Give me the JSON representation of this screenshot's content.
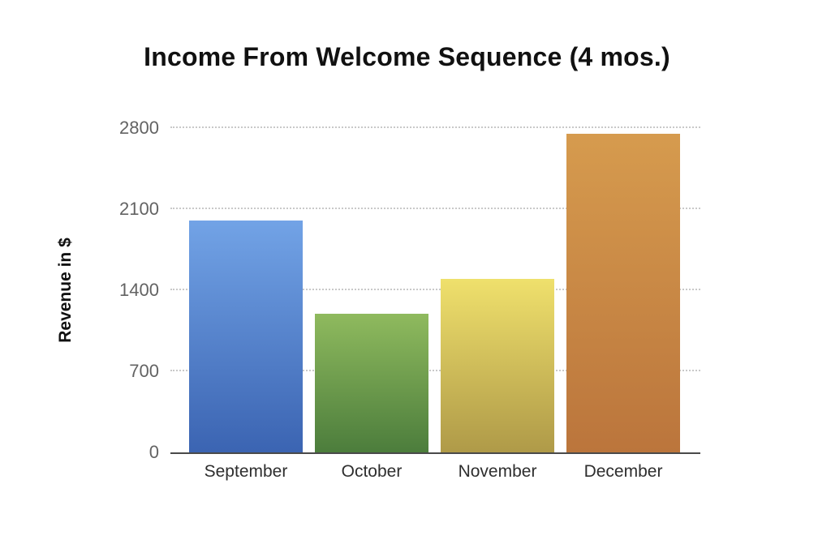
{
  "page": {
    "background_color": "#ffffff"
  },
  "chart_data": {
    "type": "bar",
    "title": "Income From Welcome Sequence (4 mos.)",
    "ylabel": "Revenue in $",
    "xlabel": "",
    "categories": [
      "September",
      "October",
      "November",
      "December"
    ],
    "values": [
      2000,
      1200,
      1500,
      2750
    ],
    "y_ticks": [
      0,
      700,
      1400,
      2100,
      2800
    ],
    "ylim": [
      0,
      2800
    ],
    "grid": "horizontal dotted, behind bars",
    "legend_position": "none",
    "bar_gradients": [
      {
        "name": "blue",
        "top": "#72A3E6",
        "bottom": "#3B64B2"
      },
      {
        "name": "green",
        "top": "#8FBA5E",
        "bottom": "#4C7D3C"
      },
      {
        "name": "yellow",
        "top": "#EFE06C",
        "bottom": "#AF9A48"
      },
      {
        "name": "orange",
        "top": "#D69B4E",
        "bottom": "#BB753C"
      }
    ],
    "axis_line_color": "#4a4a4a",
    "grid_color": "#c9c9c9",
    "tick_label_color": "#636363",
    "x_label_color": "#2e2e2e",
    "title_color": "#111111"
  }
}
